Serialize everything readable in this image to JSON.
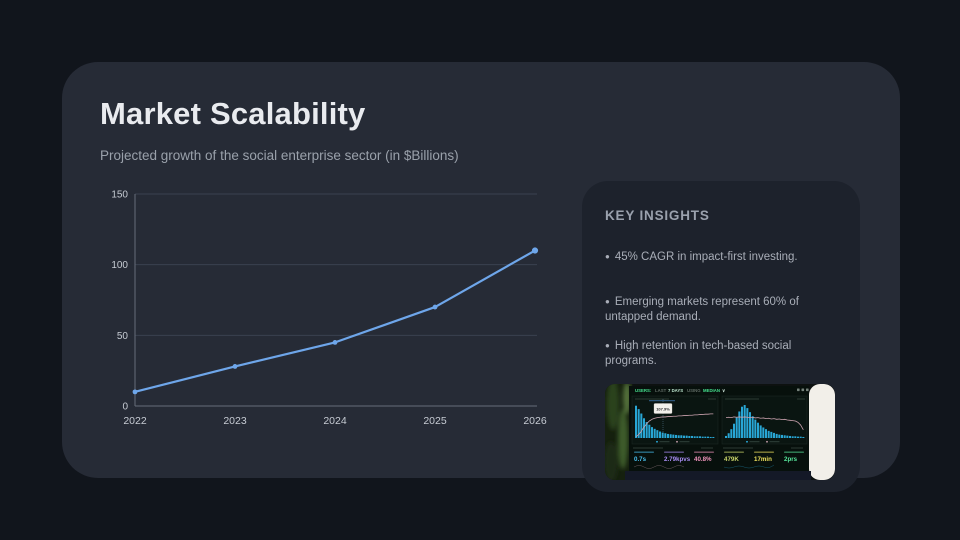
{
  "slide": {
    "title": "Market Scalability",
    "subtitle": "Projected growth of the social enterprise sector (in $Billions)"
  },
  "chart_data": {
    "type": "line",
    "title": "Projected growth of the social enterprise sector (in $Billions)",
    "x": [
      "2022",
      "2023",
      "2024",
      "2025",
      "2026"
    ],
    "values": [
      10,
      28,
      45,
      70,
      110
    ],
    "xlabel": "",
    "ylabel": "",
    "ylim": [
      0,
      150
    ],
    "yticks": [
      0,
      50,
      100,
      150
    ],
    "grid": true,
    "legend": "none",
    "line_color": "#6ea6ea"
  },
  "insights": {
    "heading": "KEY INSIGHTS",
    "bullet_glyph": "●",
    "bullets": [
      "45% CAGR in impact-first investing.",
      "Emerging markets represent 60% of untapped demand.",
      "High retention in tech-based social programs."
    ]
  },
  "photo": {
    "topbar": [
      {
        "text": "USERS:",
        "color": "#45e08e"
      },
      {
        "text": "LAST",
        "color": "#5f6a64"
      },
      {
        "text": "7 DAYS",
        "color": "#bfe9d2"
      },
      {
        "text": "USING",
        "color": "#5f6a64"
      },
      {
        "text": "MEDIAN",
        "color": "#45e08e"
      },
      {
        "text": "∨",
        "color": "#cfe5da"
      }
    ],
    "tooltip_value": "107.9%",
    "bar_color": "#2bb3e6",
    "line_color": "#caa2ae",
    "left_chart_bars": [
      95,
      85,
      72,
      58,
      47,
      39,
      32,
      27,
      23,
      19,
      16,
      14,
      12,
      11,
      10,
      9,
      8,
      8,
      7,
      7,
      6,
      6,
      5,
      5,
      5,
      4,
      4,
      4,
      3,
      3
    ],
    "left_chart_line": [
      4,
      10,
      20,
      32,
      42,
      50,
      55,
      58,
      60,
      61,
      62,
      62,
      63,
      63,
      64,
      64,
      65,
      65,
      66,
      66,
      67,
      67,
      68,
      68,
      69,
      69,
      70,
      70,
      71,
      71
    ],
    "right_chart_bars": [
      6,
      14,
      26,
      42,
      60,
      78,
      92,
      97,
      88,
      76,
      64,
      54,
      45,
      37,
      31,
      26,
      21,
      18,
      15,
      12,
      10,
      9,
      8,
      7,
      6,
      5,
      5,
      4,
      4,
      3
    ],
    "right_chart_line": [
      60,
      61,
      60,
      62,
      61,
      62,
      61,
      62,
      61,
      60,
      61,
      59,
      60,
      58,
      59,
      57,
      58,
      56,
      57,
      55,
      56,
      54,
      55,
      53,
      52,
      51,
      50,
      46,
      38,
      24
    ],
    "stats": [
      {
        "value": "0.7s",
        "color": "#49c0f0"
      },
      {
        "value": "2.79kpvs",
        "color": "#a98df5"
      },
      {
        "value": "40.8%",
        "color": "#ef93bb"
      },
      {
        "value": "479K",
        "color": "#c9d46a"
      },
      {
        "value": "17min",
        "color": "#f2e45e"
      },
      {
        "value": "2prs",
        "color": "#57e89c"
      }
    ]
  },
  "colors": {
    "background": "#11151c",
    "card": "#262b36",
    "panel": "#1d222c",
    "title": "#e9ebef",
    "muted": "#9aa1ab",
    "grid": "#3a4150",
    "axis": "#666d79",
    "tick": "#c6cbd3",
    "accent_line": "#6ea6ea"
  }
}
